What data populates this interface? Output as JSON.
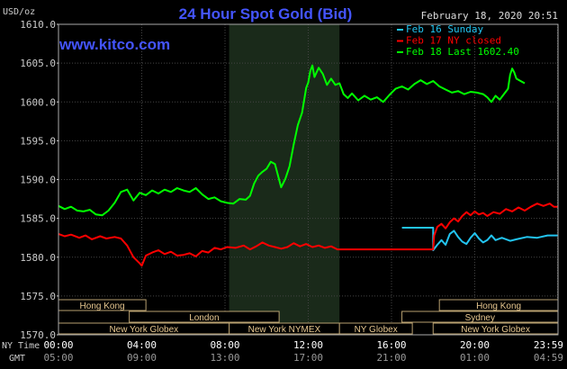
{
  "chart_data": {
    "type": "line",
    "title": "24 Hour Spot Gold (Bid)",
    "site": "www.kitco.com",
    "ylabel": "USD/oz",
    "timestamp": "February 18, 2020 20:51",
    "ylim": [
      1570,
      1610
    ],
    "y_ticks": [
      "1610.0",
      "1605.0",
      "1600.0",
      "1595.0",
      "1590.0",
      "1585.0",
      "1580.0",
      "1575.0",
      "1570.0"
    ],
    "x_hours": [
      0,
      24
    ],
    "ny_time_label": "NY Time",
    "gmt_label": "GMT",
    "ny_ticks": [
      "00:00",
      "04:00",
      "08:00",
      "12:00",
      "16:00",
      "20:00",
      "23:59"
    ],
    "gmt_ticks": [
      "05:00",
      "09:00",
      "13:00",
      "17:00",
      "21:00",
      "01:00",
      "04:59"
    ],
    "ny_tick_hours": [
      0,
      4,
      8,
      12,
      16,
      20,
      23.98
    ],
    "shaded_hours": [
      8.2,
      13.5
    ],
    "colors": {
      "sunday": "#22c4f0",
      "ny_closed": "#ff0000",
      "last": "#00ff00",
      "title": "#4455ff",
      "axis": "#cccccc",
      "grid": "#444444",
      "shade": "#1a2a1a"
    },
    "legend": [
      {
        "label": "Feb 16 Sunday",
        "color": "#22c4f0"
      },
      {
        "label": "Feb 17 NY closed",
        "color": "#ff0000"
      },
      {
        "label": "Feb 18 Last 1602.40",
        "color": "#00ff00"
      }
    ],
    "sessions": [
      {
        "label": "Hong Kong",
        "start": 0,
        "end": 4.2,
        "row": 0
      },
      {
        "label": "London",
        "start": 3.4,
        "end": 10.6,
        "row": 1
      },
      {
        "label": "New York Globex",
        "start": 0,
        "end": 8.2,
        "row": 2
      },
      {
        "label": "New York NYMEX",
        "start": 8.2,
        "end": 13.5,
        "row": 2
      },
      {
        "label": "NY Globex",
        "start": 13.5,
        "end": 17.0,
        "row": 2
      },
      {
        "label": "Hong Kong",
        "start": 18.3,
        "end": 24,
        "row": 0
      },
      {
        "label": "Sydney",
        "start": 16.5,
        "end": 24,
        "row": 1
      },
      {
        "label": "New York Globex",
        "start": 18.0,
        "end": 24,
        "row": 2
      }
    ],
    "series": [
      {
        "name": "Feb 16 Sunday",
        "color": "#22c4f0",
        "points": [
          [
            16.5,
            1583.8
          ],
          [
            17.5,
            1583.8
          ],
          [
            18.0,
            1583.8
          ],
          [
            18.0,
            1580.9
          ],
          [
            18.2,
            1581.6
          ],
          [
            18.4,
            1582.2
          ],
          [
            18.6,
            1581.6
          ],
          [
            18.8,
            1583.0
          ],
          [
            19.0,
            1583.4
          ],
          [
            19.2,
            1582.6
          ],
          [
            19.4,
            1582.0
          ],
          [
            19.6,
            1581.7
          ],
          [
            19.8,
            1582.5
          ],
          [
            20.0,
            1583.1
          ],
          [
            20.2,
            1582.4
          ],
          [
            20.4,
            1581.9
          ],
          [
            20.6,
            1582.2
          ],
          [
            20.8,
            1582.8
          ],
          [
            21.0,
            1582.2
          ],
          [
            21.3,
            1582.5
          ],
          [
            21.7,
            1582.1
          ],
          [
            22.0,
            1582.3
          ],
          [
            22.5,
            1582.6
          ],
          [
            23.0,
            1582.5
          ],
          [
            23.5,
            1582.8
          ],
          [
            24.0,
            1582.8
          ]
        ]
      },
      {
        "name": "Feb 17 NY closed",
        "color": "#ff0000",
        "points": [
          [
            0.0,
            1583.0
          ],
          [
            0.3,
            1582.7
          ],
          [
            0.6,
            1582.9
          ],
          [
            1.0,
            1582.5
          ],
          [
            1.3,
            1582.8
          ],
          [
            1.6,
            1582.3
          ],
          [
            2.0,
            1582.7
          ],
          [
            2.3,
            1582.4
          ],
          [
            2.7,
            1582.6
          ],
          [
            3.0,
            1582.4
          ],
          [
            3.3,
            1581.5
          ],
          [
            3.6,
            1580.0
          ],
          [
            3.9,
            1579.2
          ],
          [
            4.0,
            1578.9
          ],
          [
            4.2,
            1580.2
          ],
          [
            4.5,
            1580.6
          ],
          [
            4.8,
            1580.9
          ],
          [
            5.1,
            1580.4
          ],
          [
            5.4,
            1580.7
          ],
          [
            5.7,
            1580.2
          ],
          [
            6.0,
            1580.3
          ],
          [
            6.3,
            1580.5
          ],
          [
            6.6,
            1580.1
          ],
          [
            6.9,
            1580.8
          ],
          [
            7.2,
            1580.6
          ],
          [
            7.5,
            1581.2
          ],
          [
            7.8,
            1581.0
          ],
          [
            8.1,
            1581.3
          ],
          [
            8.5,
            1581.2
          ],
          [
            8.9,
            1581.5
          ],
          [
            9.2,
            1581.0
          ],
          [
            9.5,
            1581.4
          ],
          [
            9.8,
            1581.9
          ],
          [
            10.1,
            1581.5
          ],
          [
            10.4,
            1581.3
          ],
          [
            10.7,
            1581.1
          ],
          [
            11.0,
            1581.3
          ],
          [
            11.3,
            1581.8
          ],
          [
            11.6,
            1581.4
          ],
          [
            11.9,
            1581.7
          ],
          [
            12.2,
            1581.3
          ],
          [
            12.5,
            1581.5
          ],
          [
            12.8,
            1581.2
          ],
          [
            13.1,
            1581.4
          ],
          [
            13.4,
            1581.0
          ],
          [
            14.0,
            1581.0
          ],
          [
            15.0,
            1581.0
          ],
          [
            16.0,
            1581.0
          ],
          [
            17.0,
            1581.0
          ],
          [
            18.0,
            1581.0
          ],
          [
            18.05,
            1582.8
          ],
          [
            18.2,
            1583.9
          ],
          [
            18.4,
            1584.3
          ],
          [
            18.6,
            1583.7
          ],
          [
            18.8,
            1584.5
          ],
          [
            19.0,
            1585.0
          ],
          [
            19.2,
            1584.6
          ],
          [
            19.4,
            1585.3
          ],
          [
            19.6,
            1585.8
          ],
          [
            19.8,
            1585.4
          ],
          [
            20.0,
            1585.9
          ],
          [
            20.2,
            1585.5
          ],
          [
            20.4,
            1585.7
          ],
          [
            20.6,
            1585.3
          ],
          [
            20.9,
            1585.8
          ],
          [
            21.2,
            1585.6
          ],
          [
            21.5,
            1586.2
          ],
          [
            21.8,
            1585.9
          ],
          [
            22.1,
            1586.4
          ],
          [
            22.4,
            1586.0
          ],
          [
            22.7,
            1586.5
          ],
          [
            23.0,
            1586.9
          ],
          [
            23.3,
            1586.6
          ],
          [
            23.6,
            1586.9
          ],
          [
            23.8,
            1586.5
          ],
          [
            24.0,
            1586.5
          ]
        ]
      },
      {
        "name": "Feb 18 Last 1602.40",
        "color": "#00ff00",
        "points": [
          [
            0.0,
            1586.6
          ],
          [
            0.3,
            1586.2
          ],
          [
            0.6,
            1586.5
          ],
          [
            0.9,
            1586.0
          ],
          [
            1.2,
            1585.9
          ],
          [
            1.5,
            1586.1
          ],
          [
            1.8,
            1585.5
          ],
          [
            2.1,
            1585.4
          ],
          [
            2.4,
            1586.0
          ],
          [
            2.7,
            1587.0
          ],
          [
            3.0,
            1588.4
          ],
          [
            3.3,
            1588.7
          ],
          [
            3.6,
            1587.3
          ],
          [
            3.9,
            1588.3
          ],
          [
            4.2,
            1588.0
          ],
          [
            4.5,
            1588.6
          ],
          [
            4.8,
            1588.2
          ],
          [
            5.1,
            1588.7
          ],
          [
            5.4,
            1588.4
          ],
          [
            5.7,
            1588.9
          ],
          [
            6.0,
            1588.6
          ],
          [
            6.3,
            1588.4
          ],
          [
            6.6,
            1588.9
          ],
          [
            6.9,
            1588.1
          ],
          [
            7.2,
            1587.5
          ],
          [
            7.5,
            1587.7
          ],
          [
            7.8,
            1587.2
          ],
          [
            8.1,
            1587.0
          ],
          [
            8.4,
            1586.9
          ],
          [
            8.7,
            1587.5
          ],
          [
            9.0,
            1587.4
          ],
          [
            9.2,
            1587.9
          ],
          [
            9.4,
            1589.5
          ],
          [
            9.6,
            1590.5
          ],
          [
            9.8,
            1591.0
          ],
          [
            10.0,
            1591.4
          ],
          [
            10.2,
            1592.3
          ],
          [
            10.4,
            1592.0
          ],
          [
            10.6,
            1590.0
          ],
          [
            10.7,
            1589.0
          ],
          [
            10.9,
            1590.1
          ],
          [
            11.1,
            1591.7
          ],
          [
            11.3,
            1594.5
          ],
          [
            11.5,
            1597.0
          ],
          [
            11.7,
            1598.6
          ],
          [
            11.9,
            1601.8
          ],
          [
            12.0,
            1602.5
          ],
          [
            12.1,
            1604.0
          ],
          [
            12.2,
            1604.7
          ],
          [
            12.3,
            1603.2
          ],
          [
            12.5,
            1604.4
          ],
          [
            12.7,
            1603.6
          ],
          [
            12.9,
            1602.2
          ],
          [
            13.1,
            1603.0
          ],
          [
            13.3,
            1602.2
          ],
          [
            13.5,
            1602.4
          ],
          [
            13.7,
            1601.0
          ],
          [
            13.9,
            1600.5
          ],
          [
            14.1,
            1601.1
          ],
          [
            14.4,
            1600.2
          ],
          [
            14.7,
            1600.8
          ],
          [
            15.0,
            1600.3
          ],
          [
            15.3,
            1600.6
          ],
          [
            15.6,
            1600.0
          ],
          [
            15.9,
            1600.9
          ],
          [
            16.2,
            1601.7
          ],
          [
            16.5,
            1602.0
          ],
          [
            16.8,
            1601.6
          ],
          [
            17.1,
            1602.3
          ],
          [
            17.4,
            1602.8
          ],
          [
            17.7,
            1602.3
          ],
          [
            18.0,
            1602.7
          ],
          [
            18.3,
            1602.0
          ],
          [
            18.6,
            1601.6
          ],
          [
            18.9,
            1601.2
          ],
          [
            19.2,
            1601.4
          ],
          [
            19.5,
            1601.0
          ],
          [
            19.8,
            1601.3
          ],
          [
            20.1,
            1601.2
          ],
          [
            20.4,
            1601.0
          ],
          [
            20.6,
            1600.6
          ],
          [
            20.8,
            1600.0
          ],
          [
            21.0,
            1600.8
          ],
          [
            21.2,
            1600.3
          ],
          [
            21.4,
            1601.0
          ],
          [
            21.6,
            1601.7
          ],
          [
            21.7,
            1603.5
          ],
          [
            21.8,
            1604.3
          ],
          [
            21.9,
            1603.8
          ],
          [
            22.0,
            1603.0
          ],
          [
            22.2,
            1602.7
          ],
          [
            22.4,
            1602.4
          ]
        ]
      }
    ]
  }
}
